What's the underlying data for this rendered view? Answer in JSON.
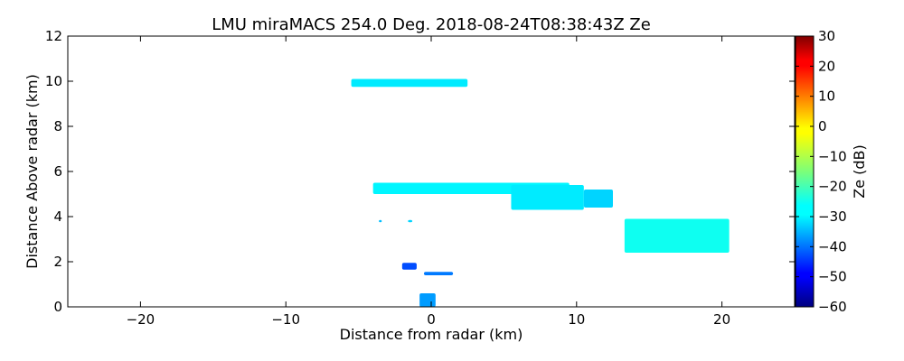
{
  "chart_data": {
    "type": "heatmap",
    "title": "LMU miraMACS 254.0 Deg. 2018-08-24T08:38:43Z  Ze",
    "xlabel": "Distance from radar (km)",
    "ylabel": "Distance Above radar  (km)",
    "xlim": [
      -25,
      25
    ],
    "ylim": [
      0,
      12
    ],
    "xticks": [
      -20,
      -10,
      0,
      10,
      20
    ],
    "xtick_labels": [
      "−20",
      "−10",
      "0",
      "10",
      "20"
    ],
    "yticks": [
      0,
      2,
      4,
      6,
      8,
      10,
      12
    ],
    "ytick_labels": [
      "0",
      "2",
      "4",
      "6",
      "8",
      "10",
      "12"
    ],
    "grid": false,
    "colormap": "jet",
    "colorbar": {
      "label": "Ze (dB)",
      "range": [
        -60,
        30
      ],
      "ticks": [
        -60,
        -50,
        -40,
        -30,
        -20,
        -10,
        0,
        10,
        20,
        30
      ],
      "tick_labels": [
        "−60",
        "−50",
        "−40",
        "−30",
        "−20",
        "−10",
        "0",
        "10",
        "20",
        "30"
      ]
    },
    "echo_regions": [
      {
        "x": [
          -5.5,
          2.5
        ],
        "y": [
          9.75,
          10.1
        ],
        "ze": -28
      },
      {
        "x": [
          -4.0,
          9.5
        ],
        "y": [
          5.0,
          5.5
        ],
        "ze": -27
      },
      {
        "x": [
          5.5,
          10.5
        ],
        "y": [
          4.3,
          5.4
        ],
        "ze": -28
      },
      {
        "x": [
          10.5,
          12.5
        ],
        "y": [
          4.4,
          5.2
        ],
        "ze": -30
      },
      {
        "x": [
          13.3,
          20.5
        ],
        "y": [
          2.4,
          3.9
        ],
        "ze": -25
      },
      {
        "x": [
          -2.0,
          -1.0
        ],
        "y": [
          1.65,
          1.95
        ],
        "ze": -42
      },
      {
        "x": [
          -0.5,
          1.5
        ],
        "y": [
          1.4,
          1.55
        ],
        "ze": -38
      },
      {
        "x": [
          -0.8,
          0.3
        ],
        "y": [
          0.0,
          0.6
        ],
        "ze": -35
      },
      {
        "x": [
          -3.6,
          -3.4
        ],
        "y": [
          3.75,
          3.85
        ],
        "ze": -32
      },
      {
        "x": [
          -1.6,
          -1.3
        ],
        "y": [
          3.75,
          3.85
        ],
        "ze": -30
      }
    ]
  }
}
